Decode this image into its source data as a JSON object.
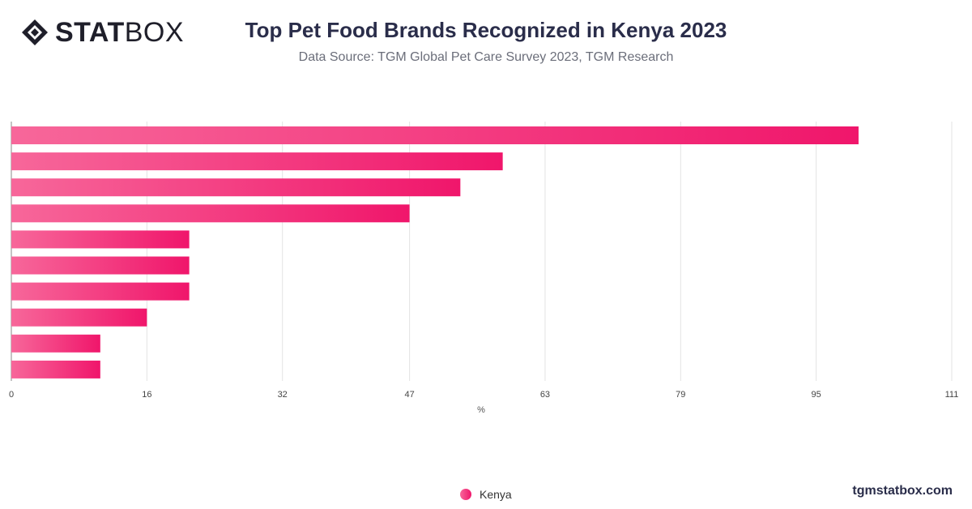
{
  "header": {
    "logo_text_bold": "STAT",
    "logo_text_light": "BOX",
    "title": "Top Pet Food Brands Recognized in Kenya 2023",
    "subtitle": "Data Source: TGM Global Pet Care Survey 2023, TGM Research"
  },
  "colors": {
    "bar_start": "#f7679a",
    "bar_end": "#f0166b",
    "grid": "#e3e3e3",
    "axis_text": "#444444"
  },
  "chart_data": {
    "type": "bar",
    "orientation": "horizontal",
    "categories": [
      "",
      "",
      "",
      "",
      "",
      "",
      "",
      "",
      "",
      ""
    ],
    "series": [
      {
        "name": "Kenya",
        "values": [
          100,
          58,
          53,
          47,
          21,
          21,
          21,
          16,
          10.5,
          10.5
        ]
      }
    ],
    "x_ticks": [
      0,
      16,
      32,
      47,
      63,
      79,
      95,
      111
    ],
    "xlim": [
      0,
      111
    ],
    "xlabel": "%",
    "grid": true,
    "legend_position": "bottom-center"
  },
  "legend": {
    "label": "Kenya"
  },
  "footer": {
    "brand": "tgmstatbox.com"
  }
}
